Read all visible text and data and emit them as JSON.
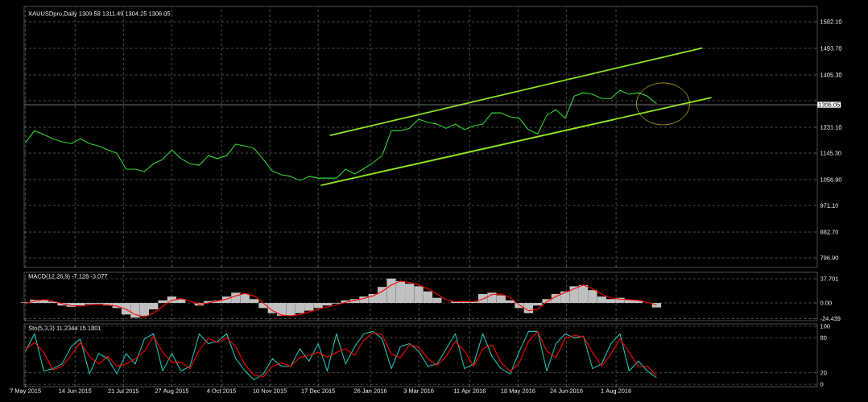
{
  "chart_data": [
    {
      "type": "line",
      "title": "XAUUSDpro,Daily  1309.58 1311.49 1304.25 1306.05",
      "x": [
        "2015-05-07",
        "2015-05-14",
        "2015-05-21",
        "2015-05-28",
        "2015-06-04",
        "2015-06-11",
        "2015-06-18",
        "2015-06-25",
        "2015-07-02",
        "2015-07-09",
        "2015-07-16",
        "2015-07-23",
        "2015-07-30",
        "2015-08-06",
        "2015-08-13",
        "2015-08-20",
        "2015-08-27",
        "2015-09-03",
        "2015-09-10",
        "2015-09-17",
        "2015-09-24",
        "2015-10-01",
        "2015-10-08",
        "2015-10-15",
        "2015-10-22",
        "2015-10-29",
        "2015-11-05",
        "2015-11-12",
        "2015-11-19",
        "2015-11-26",
        "2015-12-03",
        "2015-12-10",
        "2015-12-17",
        "2015-12-24",
        "2015-12-31",
        "2016-01-07",
        "2016-01-14",
        "2016-01-21",
        "2016-01-28",
        "2016-02-04",
        "2016-02-11",
        "2016-02-18",
        "2016-02-25",
        "2016-03-03",
        "2016-03-10",
        "2016-03-17",
        "2016-03-24",
        "2016-03-31",
        "2016-04-07",
        "2016-04-14",
        "2016-04-21",
        "2016-04-28",
        "2016-05-05",
        "2016-05-12",
        "2016-05-19",
        "2016-05-26",
        "2016-06-02",
        "2016-06-09",
        "2016-06-16",
        "2016-06-23",
        "2016-06-30",
        "2016-07-07",
        "2016-07-14",
        "2016-07-21",
        "2016-07-28",
        "2016-08-04",
        "2016-08-11",
        "2016-08-18",
        "2016-08-25",
        "2016-09-01"
      ],
      "series": [
        {
          "color": "#2ed42e",
          "values": [
            1180,
            1220,
            1207,
            1193,
            1183,
            1177,
            1193,
            1177,
            1169,
            1156,
            1145,
            1092,
            1092,
            1084,
            1110,
            1124,
            1156,
            1127,
            1110,
            1105,
            1137,
            1127,
            1137,
            1175,
            1169,
            1161,
            1124,
            1086,
            1073,
            1068,
            1054,
            1068,
            1062,
            1062,
            1062,
            1092,
            1076,
            1094,
            1113,
            1137,
            1220,
            1220,
            1228,
            1258,
            1247,
            1242,
            1228,
            1242,
            1223,
            1236,
            1242,
            1279,
            1279,
            1266,
            1261,
            1223,
            1209,
            1271,
            1290,
            1261,
            1335,
            1346,
            1341,
            1327,
            1327,
            1354,
            1341,
            1346,
            1335,
            1309
          ]
        },
        {
          "type": "line",
          "color": "#8fe61e",
          "x": [
            "2015-12-26",
            "2016-10-06"
          ],
          "values": [
            1204,
            1495
          ]
        },
        {
          "type": "line",
          "color": "#8fe61e",
          "x": [
            "2015-12-19",
            "2016-10-13"
          ],
          "values": [
            1038,
            1330
          ]
        }
      ],
      "xlim": [
        "2015-05-06",
        "2017-01-02"
      ],
      "xticks": [
        {
          "value": "2015-05-07",
          "label": null
        },
        {
          "value": "2015-06-14",
          "label": null
        },
        {
          "value": "2015-07-21",
          "label": null
        },
        {
          "value": "2015-08-27",
          "label": null
        },
        {
          "value": "2015-10-04",
          "label": null
        },
        {
          "value": "2015-11-10",
          "label": null
        },
        {
          "value": "2015-12-17",
          "label": null
        },
        {
          "value": "2016-01-26",
          "label": null
        },
        {
          "value": "2016-03-03",
          "label": null
        },
        {
          "value": "2016-04-11",
          "label": null
        },
        {
          "value": "2016-05-18",
          "label": null
        },
        {
          "value": "2016-06-24",
          "label": null
        },
        {
          "value": "2016-08-01",
          "label": null
        }
      ],
      "ylim": [
        765,
        1633
      ],
      "yticks": [
        {
          "value": 796.9,
          "label": "796.90"
        },
        {
          "value": 882.7,
          "label": "882.70"
        },
        {
          "value": 971.1,
          "label": "971.10"
        },
        {
          "value": 1056.9,
          "label": "1056.90"
        },
        {
          "value": 1145.3,
          "label": "1145.30"
        },
        {
          "value": 1231.1,
          "label": "1231.10"
        },
        {
          "value": 1319.5,
          "label": null
        },
        {
          "value": 1405.3,
          "label": "1405.30"
        },
        {
          "value": 1493.7,
          "label": "1493.70"
        },
        {
          "value": 1582.1,
          "label": "1582.10"
        }
      ],
      "ref_lines": [
        {
          "axis": "y",
          "value": 1306.05,
          "label": "1306.05",
          "color": "#c0c0c0"
        }
      ],
      "grid": true,
      "tick_labels": "y"
    },
    {
      "type": "bar",
      "title": "MACD(12,26,9) -7.128 -3.077",
      "x": [
        "2015-05-07",
        "2015-05-14",
        "2015-05-21",
        "2015-05-28",
        "2015-06-04",
        "2015-06-11",
        "2015-06-18",
        "2015-06-25",
        "2015-07-02",
        "2015-07-09",
        "2015-07-16",
        "2015-07-23",
        "2015-07-30",
        "2015-08-06",
        "2015-08-13",
        "2015-08-20",
        "2015-08-27",
        "2015-09-03",
        "2015-09-10",
        "2015-09-17",
        "2015-09-24",
        "2015-10-01",
        "2015-10-08",
        "2015-10-15",
        "2015-10-22",
        "2015-10-29",
        "2015-11-05",
        "2015-11-12",
        "2015-11-19",
        "2015-11-26",
        "2015-12-03",
        "2015-12-10",
        "2015-12-17",
        "2015-12-24",
        "2015-12-31",
        "2016-01-07",
        "2016-01-14",
        "2016-01-21",
        "2016-01-28",
        "2016-02-04",
        "2016-02-11",
        "2016-02-18",
        "2016-02-25",
        "2016-03-03",
        "2016-03-10",
        "2016-03-17",
        "2016-03-24",
        "2016-03-31",
        "2016-04-07",
        "2016-04-14",
        "2016-04-21",
        "2016-04-28",
        "2016-05-05",
        "2016-05-12",
        "2016-05-19",
        "2016-05-26",
        "2016-06-02",
        "2016-06-09",
        "2016-06-16",
        "2016-06-23",
        "2016-06-30",
        "2016-07-07",
        "2016-07-14",
        "2016-07-21",
        "2016-07-28",
        "2016-08-04",
        "2016-08-11",
        "2016-08-18",
        "2016-08-25",
        "2016-09-01"
      ],
      "series": [
        {
          "type": "bar",
          "color": "#c0c0c0",
          "values": [
            1,
            5,
            5,
            2,
            -4,
            -6,
            -4,
            -2,
            -2,
            -4,
            -8,
            -18,
            -23,
            -20,
            -10,
            4,
            10,
            6,
            0,
            -4,
            3,
            4,
            10,
            16,
            14,
            6,
            -8,
            -16,
            -20,
            -20,
            -16,
            -12,
            -8,
            -4,
            -1,
            4,
            6,
            10,
            14,
            25,
            38,
            34,
            30,
            26,
            18,
            8,
            0,
            2,
            2,
            2,
            14,
            16,
            12,
            4,
            -8,
            -16,
            -4,
            6,
            14,
            18,
            26,
            28,
            20,
            10,
            6,
            8,
            5,
            4,
            0,
            -7
          ]
        },
        {
          "type": "line",
          "color": "#ff0000",
          "values": [
            -1,
            3,
            5,
            3,
            -1,
            -4,
            -5,
            -3,
            -2,
            -3,
            -5,
            -10,
            -18,
            -22,
            -16,
            -5,
            4,
            7,
            3,
            -2,
            0,
            3,
            6,
            11,
            15,
            11,
            0,
            -12,
            -19,
            -20,
            -18,
            -14,
            -10,
            -6,
            -3,
            1,
            4,
            7,
            11,
            18,
            28,
            34,
            32,
            28,
            22,
            14,
            5,
            2,
            2,
            2,
            6,
            13,
            14,
            8,
            -3,
            -12,
            -10,
            2,
            10,
            16,
            22,
            28,
            22,
            14,
            8,
            6,
            5,
            4,
            1,
            -3
          ]
        }
      ],
      "xlim": [
        "2015-05-06",
        "2017-01-02"
      ],
      "xticks": [
        {
          "value": "2015-05-07",
          "label": null
        },
        {
          "value": "2015-06-14",
          "label": null
        },
        {
          "value": "2015-07-21",
          "label": null
        },
        {
          "value": "2015-08-27",
          "label": null
        },
        {
          "value": "2015-10-04",
          "label": null
        },
        {
          "value": "2015-11-10",
          "label": null
        },
        {
          "value": "2015-12-17",
          "label": null
        },
        {
          "value": "2016-01-26",
          "label": null
        },
        {
          "value": "2016-03-03",
          "label": null
        },
        {
          "value": "2016-04-11",
          "label": null
        },
        {
          "value": "2016-05-18",
          "label": null
        },
        {
          "value": "2016-06-24",
          "label": null
        },
        {
          "value": "2016-08-01",
          "label": null
        }
      ],
      "ylim": [
        -27.6,
        47.8
      ],
      "yticks": [
        -24.439,
        {
          "value": 0,
          "label": "0.00"
        },
        37.701
      ],
      "grid": true,
      "tick_labels": "y"
    },
    {
      "type": "line",
      "title": "Sto(5,3,3) 11.2344 15.1801",
      "x": [
        "2015-05-07",
        "2015-05-14",
        "2015-05-21",
        "2015-05-28",
        "2015-06-04",
        "2015-06-11",
        "2015-06-18",
        "2015-06-25",
        "2015-07-02",
        "2015-07-09",
        "2015-07-16",
        "2015-07-23",
        "2015-07-30",
        "2015-08-06",
        "2015-08-13",
        "2015-08-20",
        "2015-08-27",
        "2015-09-03",
        "2015-09-10",
        "2015-09-17",
        "2015-09-24",
        "2015-10-01",
        "2015-10-08",
        "2015-10-15",
        "2015-10-22",
        "2015-10-29",
        "2015-11-05",
        "2015-11-12",
        "2015-11-19",
        "2015-11-26",
        "2015-12-03",
        "2015-12-10",
        "2015-12-17",
        "2015-12-24",
        "2015-12-31",
        "2016-01-07",
        "2016-01-14",
        "2016-01-21",
        "2016-01-28",
        "2016-02-04",
        "2016-02-11",
        "2016-02-18",
        "2016-02-25",
        "2016-03-03",
        "2016-03-10",
        "2016-03-17",
        "2016-03-24",
        "2016-03-31",
        "2016-04-07",
        "2016-04-14",
        "2016-04-21",
        "2016-04-28",
        "2016-05-05",
        "2016-05-12",
        "2016-05-19",
        "2016-05-26",
        "2016-06-02",
        "2016-06-09",
        "2016-06-16",
        "2016-06-23",
        "2016-06-30",
        "2016-07-07",
        "2016-07-14",
        "2016-07-21",
        "2016-07-28",
        "2016-08-04",
        "2016-08-11",
        "2016-08-18",
        "2016-08-25",
        "2016-09-01"
      ],
      "series": [
        {
          "color": "#20c0b8",
          "values": [
            57,
            87,
            23,
            27,
            35,
            65,
            78,
            18,
            53,
            44,
            18,
            53,
            35,
            78,
            87,
            23,
            53,
            23,
            31,
            87,
            70,
            74,
            87,
            44,
            23,
            8,
            18,
            44,
            31,
            31,
            61,
            40,
            70,
            23,
            87,
            35,
            65,
            87,
            91,
            78,
            27,
            65,
            70,
            57,
            31,
            35,
            61,
            87,
            27,
            35,
            87,
            48,
            27,
            18,
            57,
            91,
            91,
            23,
            70,
            87,
            80,
            83,
            27,
            35,
            70,
            87,
            23,
            40,
            23,
            11
          ]
        },
        {
          "color": "#ff0000",
          "values": [
            60,
            72,
            55,
            25,
            31,
            50,
            72,
            48,
            35,
            48,
            31,
            35,
            44,
            57,
            83,
            55,
            38,
            38,
            27,
            59,
            79,
            72,
            80,
            65,
            34,
            16,
            13,
            31,
            37,
            31,
            46,
            50,
            55,
            47,
            55,
            61,
            50,
            76,
            89,
            85,
            52,
            46,
            68,
            64,
            44,
            33,
            48,
            74,
            57,
            31,
            61,
            68,
            38,
            22,
            37,
            74,
            91,
            57,
            46,
            79,
            84,
            82,
            55,
            31,
            52,
            78,
            55,
            31,
            31,
            15
          ]
        }
      ],
      "xlim": [
        "2015-05-06",
        "2017-01-02"
      ],
      "xticks": [
        {
          "value": "2015-05-07",
          "label": "7 May 2015"
        },
        {
          "value": "2015-06-14",
          "label": "14 Jun 2015"
        },
        {
          "value": "2015-07-21",
          "label": "21 Jul 2015"
        },
        {
          "value": "2015-08-27",
          "label": "27 Aug 2015"
        },
        {
          "value": "2015-10-04",
          "label": "4 Oct 2015"
        },
        {
          "value": "2015-11-10",
          "label": "10 Nov 2015"
        },
        {
          "value": "2015-12-17",
          "label": "17 Dec 2015"
        },
        {
          "value": "2016-01-26",
          "label": "26 Jan 2016"
        },
        {
          "value": "2016-03-03",
          "label": "3 Mar 2016"
        },
        {
          "value": "2016-04-11",
          "label": "11 Apr 2016"
        },
        {
          "value": "2016-05-18",
          "label": "18 May 2016"
        },
        {
          "value": "2016-06-24",
          "label": "24 Jun 2016"
        },
        {
          "value": "2016-08-01",
          "label": "1 Aug 2016"
        }
      ],
      "ylim": [
        -4,
        104
      ],
      "yticks": [
        0,
        20,
        80,
        100
      ],
      "grid": true
    }
  ]
}
